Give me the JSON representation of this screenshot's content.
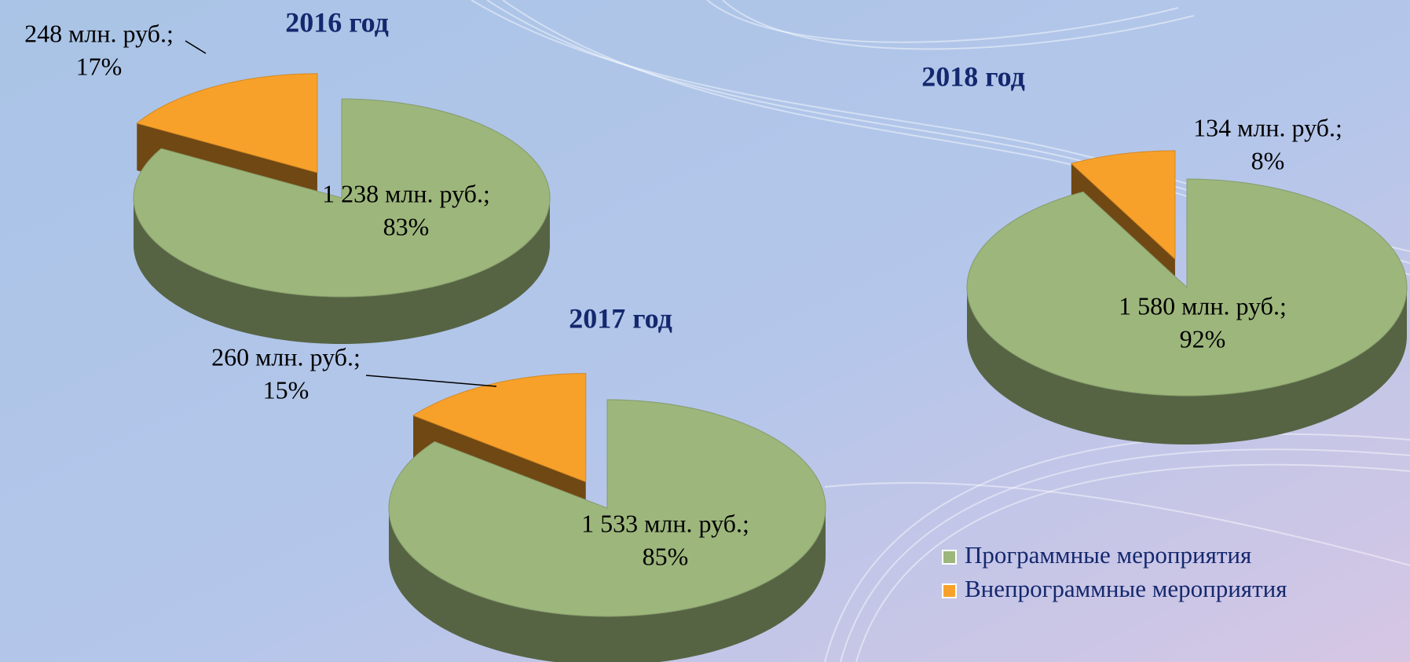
{
  "legend": {
    "items": [
      {
        "name": "Программные мероприятия",
        "color": "#9db67c"
      },
      {
        "name": "Внепрограммные мероприятия",
        "color": "#f8a12a"
      }
    ]
  },
  "chart_data": [
    {
      "type": "pie3d",
      "title": "2016 год",
      "values": [
        1238,
        248
      ],
      "value_labels": [
        "1 238 млн. руб.;",
        "248 млн. руб.;"
      ],
      "percents": [
        83,
        17
      ],
      "percent_labels": [
        "83%",
        "17%"
      ]
    },
    {
      "type": "pie3d",
      "title": "2017 год",
      "values": [
        1533,
        260
      ],
      "value_labels": [
        "1 533 млн. руб.;",
        "260 млн. руб.;"
      ],
      "percents": [
        85,
        15
      ],
      "percent_labels": [
        "85%",
        "15%"
      ]
    },
    {
      "type": "pie3d",
      "title": "2018 год",
      "values": [
        1580,
        134
      ],
      "value_labels": [
        "1 580 млн. руб.;",
        "134 млн. руб.;"
      ],
      "percents": [
        92,
        8
      ],
      "percent_labels": [
        "92%",
        "8%"
      ]
    }
  ]
}
